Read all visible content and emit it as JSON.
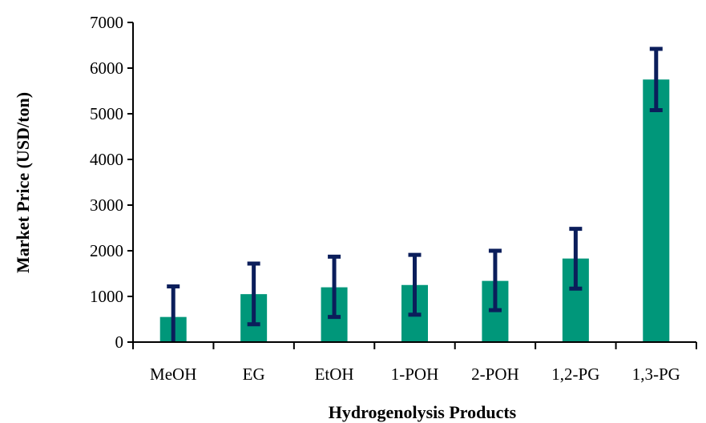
{
  "chart_data": {
    "type": "bar",
    "xlabel": "Hydrogenolysis Products",
    "ylabel": "Market Price (USD/ton)",
    "categories": [
      "MeOH",
      "EG",
      "EtOH",
      "1-POH",
      "2-POH",
      "1,2-PG",
      "1,3-PG"
    ],
    "values": [
      550,
      1050,
      1200,
      1250,
      1340,
      1830,
      5750
    ],
    "error_low": [
      0,
      390,
      550,
      600,
      700,
      1170,
      5080
    ],
    "error_high": [
      1220,
      1720,
      1870,
      1910,
      2000,
      2480,
      6420
    ],
    "ylim": [
      0,
      7000
    ],
    "yticks": [
      0,
      1000,
      2000,
      3000,
      4000,
      5000,
      6000,
      7000
    ],
    "grid": false,
    "colors": {
      "bar": "#00977A",
      "error_bar": "#0B1E5B",
      "axis": "#000000"
    }
  }
}
